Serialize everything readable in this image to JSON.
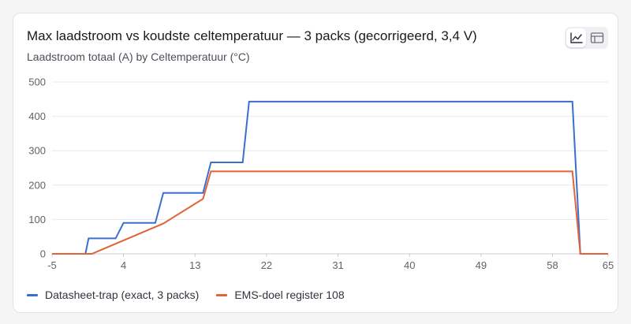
{
  "title": "Max laadstroom vs koudste celtemperatuur — 3 packs (gecorrigeerd, 3,4 V)",
  "subtitle": "Laadstroom totaal (A) by Celtemperatuur (°C)",
  "view_toggle": {
    "chart_icon": "line-chart-icon",
    "table_icon": "table-icon"
  },
  "chart_data": {
    "type": "line",
    "title": "Max laadstroom vs koudste celtemperatuur — 3 packs (gecorrigeerd, 3,4 V)",
    "subtitle": "Laadstroom totaal (A) by Celtemperatuur (°C)",
    "xlim": [
      -5,
      65
    ],
    "ylim": [
      0,
      500
    ],
    "x_ticks": [
      -5,
      4,
      13,
      22,
      31,
      40,
      49,
      58,
      65
    ],
    "x_tick_labels": [
      "-5",
      "4",
      "13",
      "22",
      "31",
      "40",
      "49",
      "58",
      "65"
    ],
    "y_ticks": [
      0,
      100,
      200,
      300,
      400,
      500
    ],
    "y_tick_labels": [
      "0",
      "100",
      "200",
      "300",
      "400",
      "500"
    ],
    "grid": "horizontal",
    "legend_position": "bottom",
    "series": [
      {
        "name": "Datasheet-trap (exact, 3 packs)",
        "color": "#3a6fd0",
        "points": [
          [
            -5,
            0
          ],
          [
            -0.8,
            0
          ],
          [
            -0.4,
            45
          ],
          [
            3,
            45
          ],
          [
            4,
            90
          ],
          [
            8,
            90
          ],
          [
            9,
            177
          ],
          [
            14,
            177
          ],
          [
            15,
            266
          ],
          [
            19,
            266
          ],
          [
            19.8,
            443
          ],
          [
            60.5,
            443
          ],
          [
            61.5,
            0
          ],
          [
            65,
            0
          ]
        ]
      },
      {
        "name": "EMS-doel register 108",
        "color": "#e0633a",
        "points": [
          [
            -5,
            0
          ],
          [
            0,
            0
          ],
          [
            9,
            88
          ],
          [
            14,
            160
          ],
          [
            15,
            240
          ],
          [
            60.5,
            240
          ],
          [
            61.5,
            0
          ],
          [
            65,
            0
          ]
        ]
      }
    ]
  }
}
